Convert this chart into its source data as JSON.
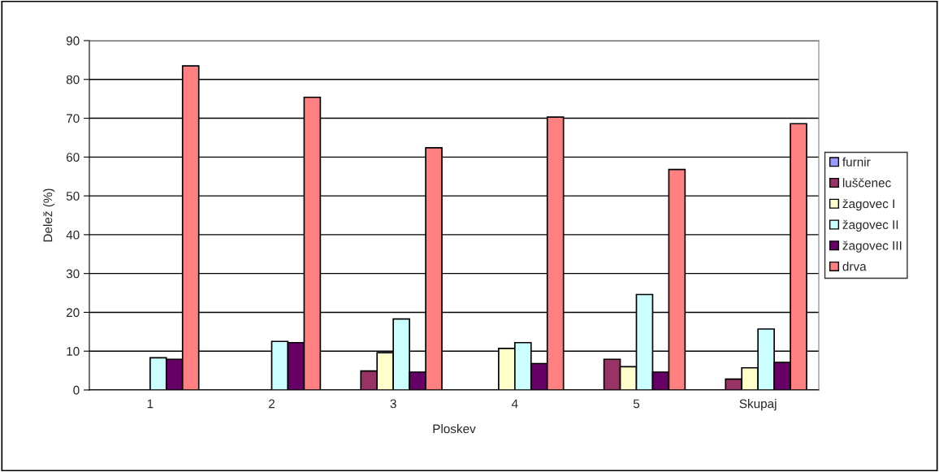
{
  "chart_data": {
    "type": "bar",
    "xlabel": "Ploskev",
    "ylabel": "Delež (%)",
    "categories": [
      "1",
      "2",
      "3",
      "4",
      "5",
      "Skupaj"
    ],
    "series": [
      {
        "name": "furnir",
        "color": "#9999ff",
        "values": [
          null,
          null,
          null,
          null,
          null,
          null
        ]
      },
      {
        "name": "luščenec",
        "color": "#993366",
        "values": [
          null,
          null,
          4.9,
          null,
          7.9,
          2.8
        ]
      },
      {
        "name": "žagovec I",
        "color": "#ffffcc",
        "values": [
          null,
          null,
          9.6,
          10.7,
          6.0,
          5.7
        ]
      },
      {
        "name": "žagovec II",
        "color": "#ccffff",
        "values": [
          8.3,
          12.5,
          18.3,
          12.2,
          24.6,
          15.7
        ]
      },
      {
        "name": "žagovec III",
        "color": "#660066",
        "values": [
          7.9,
          12.2,
          4.6,
          6.8,
          4.6,
          7.1
        ]
      },
      {
        "name": "drva",
        "color": "#ff8080",
        "values": [
          83.5,
          75.4,
          62.4,
          70.3,
          56.8,
          68.6
        ]
      }
    ],
    "ylim": [
      0,
      90
    ],
    "yticks": [
      0,
      10,
      20,
      30,
      40,
      50,
      60,
      70,
      80,
      90
    ],
    "grid": "y",
    "legend": "right"
  }
}
